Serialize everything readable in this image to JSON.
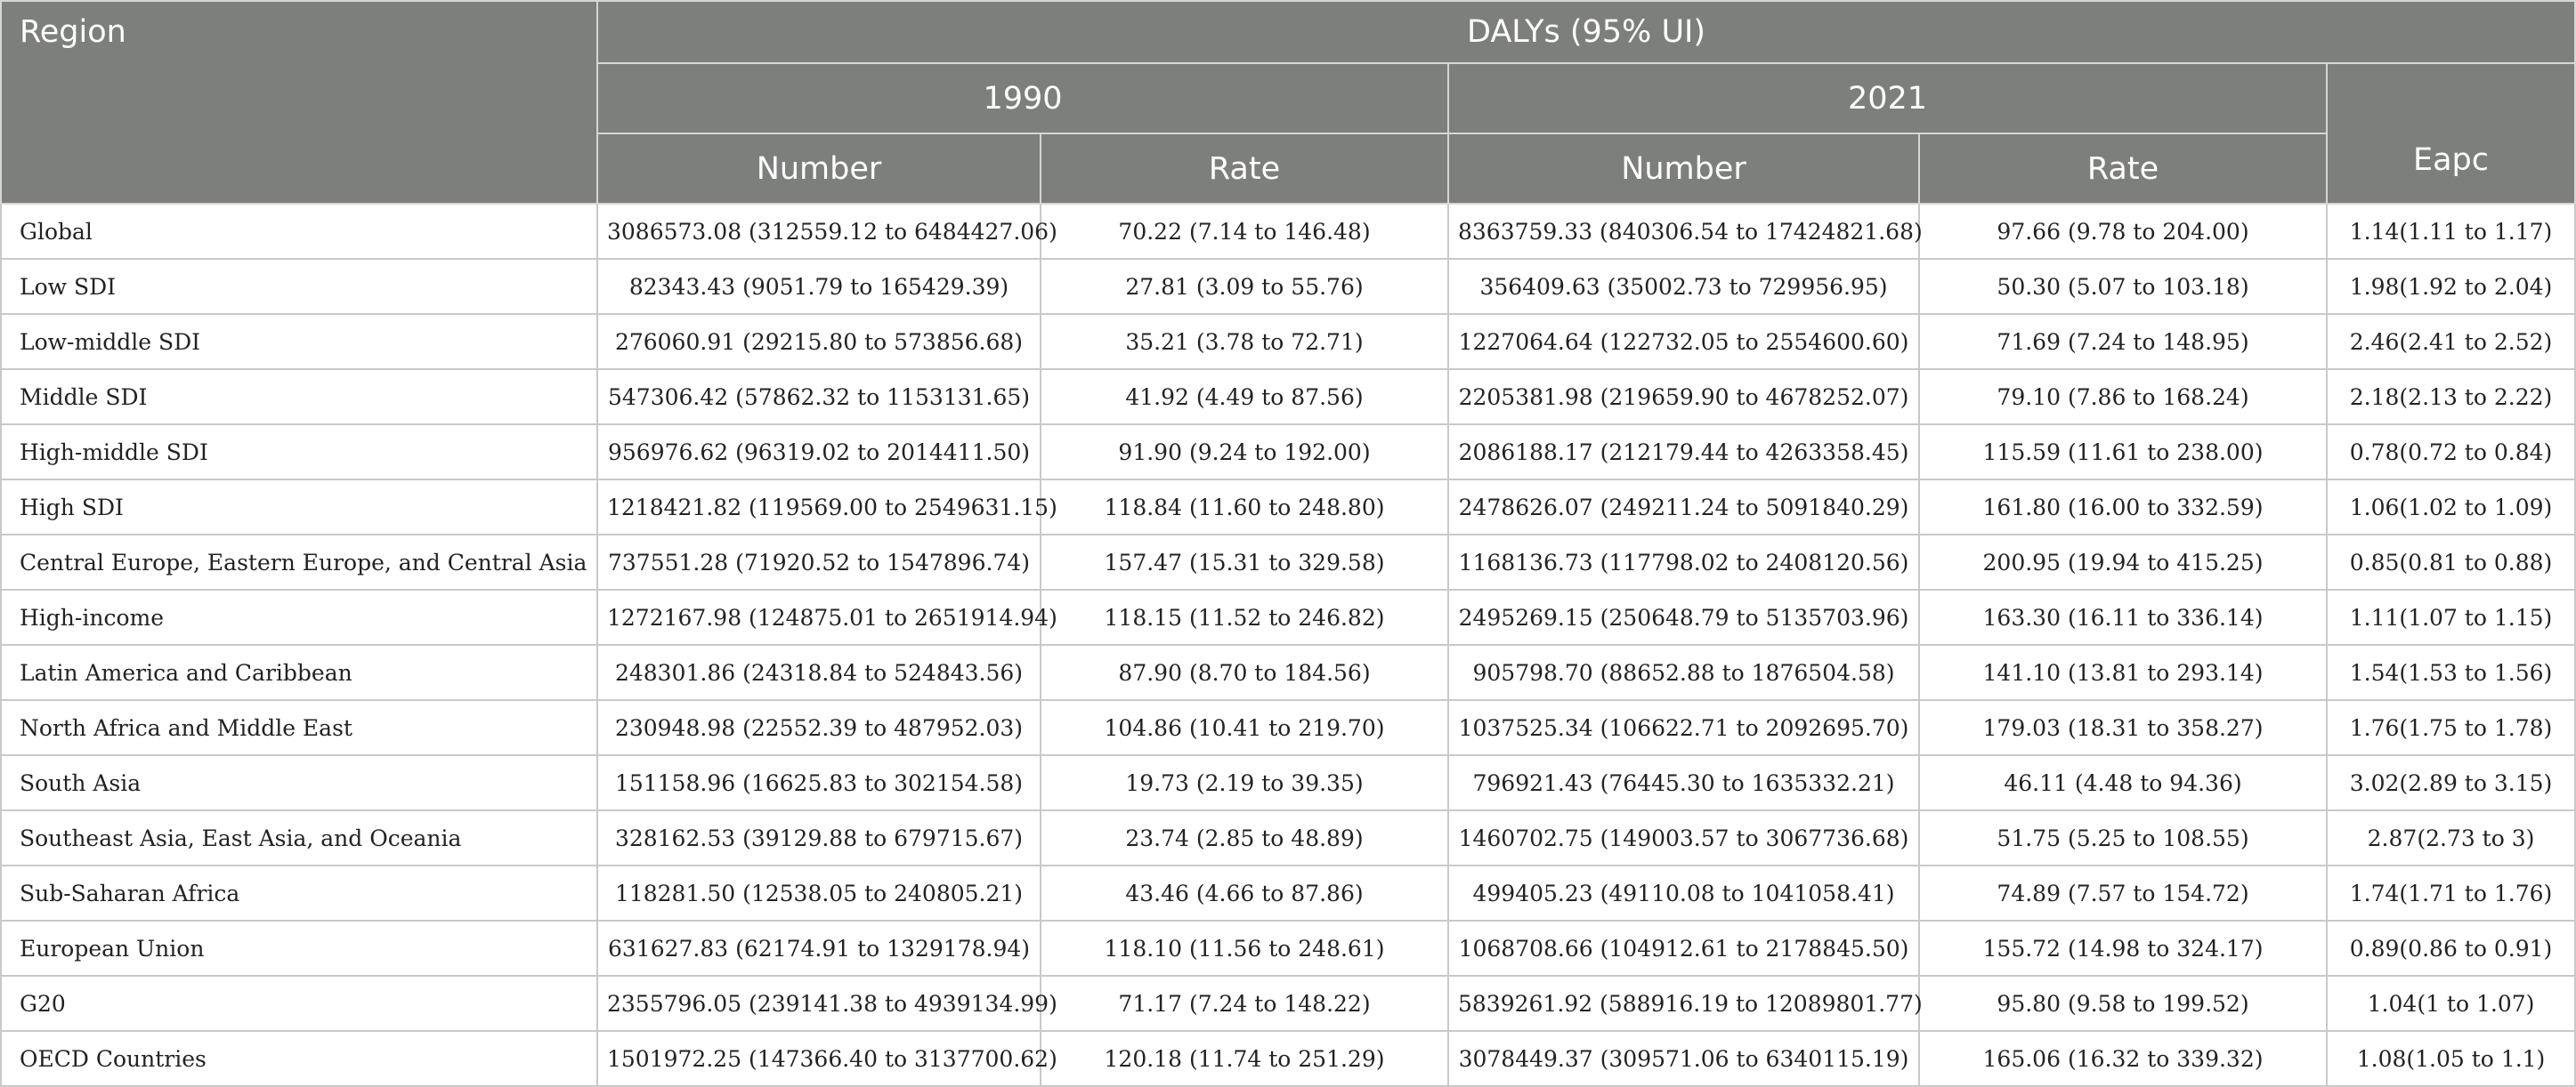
{
  "header": {
    "region": "Region",
    "dalys": "DALYs (95% UI)",
    "year1": "1990",
    "year2": "2021",
    "eapc": "Eapc",
    "number": "Number",
    "rate": "Rate"
  },
  "rows": [
    {
      "region": "Global",
      "num1990": "3086573.08 (312559.12 to 6484427.06)",
      "rate1990": "70.22 (7.14 to 146.48)",
      "num2021": "8363759.33 (840306.54 to 17424821.68)",
      "rate2021": "97.66 (9.78 to 204.00)",
      "eapc": "1.14(1.11 to 1.17)"
    },
    {
      "region": "Low SDI",
      "num1990": "82343.43 (9051.79 to 165429.39)",
      "rate1990": "27.81 (3.09 to 55.76)",
      "num2021": "356409.63 (35002.73 to 729956.95)",
      "rate2021": "50.30 (5.07 to 103.18)",
      "eapc": "1.98(1.92 to 2.04)"
    },
    {
      "region": "Low-middle SDI",
      "num1990": "276060.91 (29215.80 to 573856.68)",
      "rate1990": "35.21 (3.78 to 72.71)",
      "num2021": "1227064.64 (122732.05 to 2554600.60)",
      "rate2021": "71.69 (7.24 to 148.95)",
      "eapc": "2.46(2.41 to 2.52)"
    },
    {
      "region": "Middle SDI",
      "num1990": "547306.42 (57862.32 to 1153131.65)",
      "rate1990": "41.92 (4.49 to 87.56)",
      "num2021": "2205381.98 (219659.90 to 4678252.07)",
      "rate2021": "79.10 (7.86 to 168.24)",
      "eapc": "2.18(2.13 to 2.22)"
    },
    {
      "region": "High-middle SDI",
      "num1990": "956976.62 (96319.02 to 2014411.50)",
      "rate1990": "91.90 (9.24 to 192.00)",
      "num2021": "2086188.17 (212179.44 to 4263358.45)",
      "rate2021": "115.59 (11.61 to 238.00)",
      "eapc": "0.78(0.72 to 0.84)"
    },
    {
      "region": "High SDI",
      "num1990": "1218421.82 (119569.00 to 2549631.15)",
      "rate1990": "118.84 (11.60 to 248.80)",
      "num2021": "2478626.07 (249211.24 to 5091840.29)",
      "rate2021": "161.80 (16.00 to 332.59)",
      "eapc": "1.06(1.02 to 1.09)"
    },
    {
      "region": "Central Europe, Eastern Europe, and Central Asia",
      "num1990": "737551.28 (71920.52 to 1547896.74)",
      "rate1990": "157.47 (15.31 to 329.58)",
      "num2021": "1168136.73 (117798.02 to 2408120.56)",
      "rate2021": "200.95 (19.94 to 415.25)",
      "eapc": "0.85(0.81 to 0.88)"
    },
    {
      "region": "High-income",
      "num1990": "1272167.98 (124875.01 to 2651914.94)",
      "rate1990": "118.15 (11.52 to 246.82)",
      "num2021": "2495269.15 (250648.79 to 5135703.96)",
      "rate2021": "163.30 (16.11 to 336.14)",
      "eapc": "1.11(1.07 to 1.15)"
    },
    {
      "region": "Latin America and Caribbean",
      "num1990": "248301.86 (24318.84 to 524843.56)",
      "rate1990": "87.90 (8.70 to 184.56)",
      "num2021": "905798.70 (88652.88 to 1876504.58)",
      "rate2021": "141.10 (13.81 to 293.14)",
      "eapc": "1.54(1.53 to 1.56)"
    },
    {
      "region": "North Africa and Middle East",
      "num1990": "230948.98 (22552.39 to 487952.03)",
      "rate1990": "104.86 (10.41 to 219.70)",
      "num2021": "1037525.34 (106622.71 to 2092695.70)",
      "rate2021": "179.03 (18.31 to 358.27)",
      "eapc": "1.76(1.75 to 1.78)"
    },
    {
      "region": "South Asia",
      "num1990": "151158.96 (16625.83 to 302154.58)",
      "rate1990": "19.73 (2.19 to 39.35)",
      "num2021": "796921.43 (76445.30 to 1635332.21)",
      "rate2021": "46.11 (4.48 to 94.36)",
      "eapc": "3.02(2.89 to 3.15)"
    },
    {
      "region": "Southeast Asia, East Asia, and Oceania",
      "num1990": "328162.53 (39129.88 to 679715.67)",
      "rate1990": "23.74 (2.85 to 48.89)",
      "num2021": "1460702.75 (149003.57 to 3067736.68)",
      "rate2021": "51.75 (5.25 to 108.55)",
      "eapc": "2.87(2.73 to 3)"
    },
    {
      "region": "Sub-Saharan Africa",
      "num1990": "118281.50 (12538.05 to 240805.21)",
      "rate1990": "43.46 (4.66 to 87.86)",
      "num2021": "499405.23 (49110.08 to 1041058.41)",
      "rate2021": "74.89 (7.57 to 154.72)",
      "eapc": "1.74(1.71 to 1.76)"
    },
    {
      "region": "European Union",
      "num1990": "631627.83 (62174.91 to 1329178.94)",
      "rate1990": "118.10 (11.56 to 248.61)",
      "num2021": "1068708.66 (104912.61 to 2178845.50)",
      "rate2021": "155.72 (14.98 to 324.17)",
      "eapc": "0.89(0.86 to 0.91)"
    },
    {
      "region": "G20",
      "num1990": "2355796.05 (239141.38 to 4939134.99)",
      "rate1990": "71.17 (7.24 to 148.22)",
      "num2021": "5839261.92 (588916.19 to 12089801.77)",
      "rate2021": "95.80 (9.58 to 199.52)",
      "eapc": "1.04(1 to 1.07)"
    },
    {
      "region": "OECD Countries",
      "num1990": "1501972.25 (147366.40 to 3137700.62)",
      "rate1990": "120.18 (11.74 to 251.29)",
      "num2021": "3078449.37 (309571.06 to 6340115.19)",
      "rate2021": "165.06 (16.32 to 339.32)",
      "eapc": "1.08(1.05 to 1.1)"
    }
  ]
}
